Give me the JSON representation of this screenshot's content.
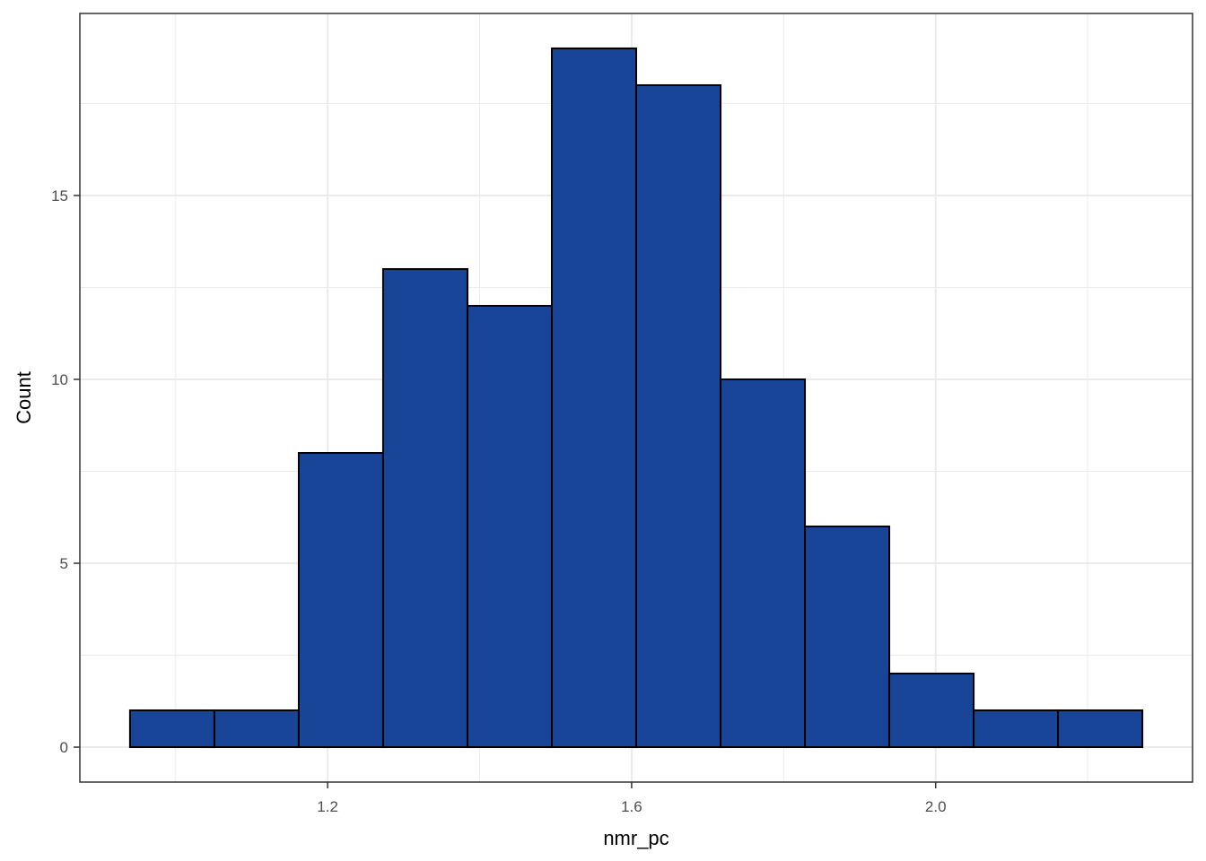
{
  "chart_data": {
    "type": "bar",
    "subtype": "histogram",
    "xlabel": "nmr_pc",
    "ylabel": "Count",
    "bins": [
      {
        "x0": 0.94,
        "x1": 1.051,
        "count": 1
      },
      {
        "x0": 1.051,
        "x1": 1.162,
        "count": 1
      },
      {
        "x0": 1.162,
        "x1": 1.273,
        "count": 8
      },
      {
        "x0": 1.273,
        "x1": 1.384,
        "count": 13
      },
      {
        "x0": 1.384,
        "x1": 1.495,
        "count": 12
      },
      {
        "x0": 1.495,
        "x1": 1.606,
        "count": 19
      },
      {
        "x0": 1.606,
        "x1": 1.717,
        "count": 18
      },
      {
        "x0": 1.717,
        "x1": 1.828,
        "count": 10
      },
      {
        "x0": 1.828,
        "x1": 1.939,
        "count": 6
      },
      {
        "x0": 1.939,
        "x1": 2.05,
        "count": 2
      },
      {
        "x0": 2.05,
        "x1": 2.161,
        "count": 1
      },
      {
        "x0": 2.161,
        "x1": 2.272,
        "count": 1
      }
    ],
    "xlim": [
      0.874,
      2.338
    ],
    "ylim": [
      -0.95,
      19.95
    ],
    "x_ticks": [
      1.2,
      1.6,
      2.0
    ],
    "x_tick_labels": [
      "1.2",
      "1.6",
      "2.0"
    ],
    "x_minor_ticks": [
      1.0,
      1.4,
      1.8,
      2.2
    ],
    "y_ticks": [
      0,
      5,
      10,
      15
    ],
    "y_tick_labels": [
      "0",
      "5",
      "10",
      "15"
    ],
    "y_minor_ticks": [
      2.5,
      7.5,
      12.5,
      17.5
    ],
    "grid": true,
    "bar_fill": "#194599",
    "bar_outline": "#000000",
    "grid_color": "#ebebeb",
    "panel_border": "#333333"
  }
}
